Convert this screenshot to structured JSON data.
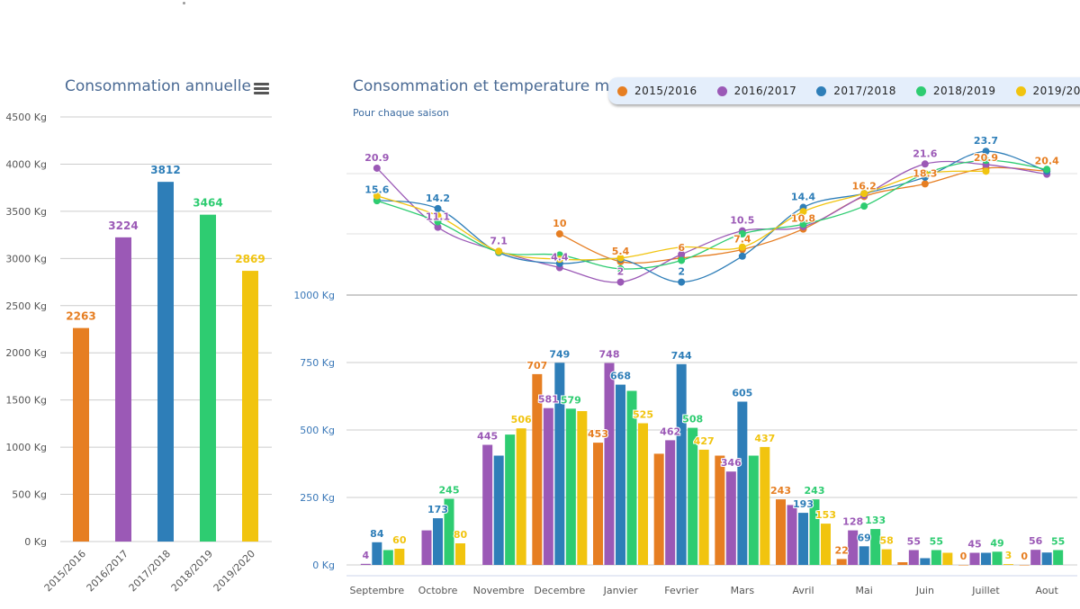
{
  "colors": {
    "2015/2016": "#e67e22",
    "2016/2017": "#9b59b6",
    "2017/2018": "#2e7eb8",
    "2018/2019": "#2ecc71",
    "2019/2020": "#f1c40f"
  },
  "chart_data": [
    {
      "type": "bar",
      "title": "Consommation annuelle",
      "categories": [
        "2015/2016",
        "2016/2017",
        "2017/2018",
        "2018/2019",
        "2019/2020"
      ],
      "values": [
        2263,
        3224,
        3812,
        3464,
        2869
      ],
      "ylim": [
        0,
        4500
      ],
      "yticks": [
        "0 Kg",
        "500 Kg",
        "1000 Kg",
        "1500 Kg",
        "2000 Kg",
        "2500 Kg",
        "3000 Kg",
        "3500 Kg",
        "4000 Kg",
        "4500 Kg"
      ],
      "grid": true
    },
    {
      "type": "bar+line",
      "title": "Consommation et temperature m",
      "subtitle": "Pour chaque saison",
      "legend": [
        "2015/2016",
        "2016/2017",
        "2017/2018",
        "2018/2019",
        "2019/2020"
      ],
      "legend_position": "top-right",
      "categories": [
        "Septembre",
        "Octobre",
        "Novembre",
        "Decembre",
        "Janvier",
        "Fevrier",
        "Mars",
        "Avril",
        "Mai",
        "Juin",
        "Juillet",
        "Aout"
      ],
      "bar_ylim": [
        0,
        750
      ],
      "bar_yticks": [
        "0 Kg",
        "250 Kg",
        "500 Kg",
        "750 Kg",
        "1000 Kg"
      ],
      "bar_series": [
        {
          "name": "2015/2016",
          "values": [
            null,
            null,
            null,
            707,
            453,
            412,
            405,
            243,
            22,
            10,
            0,
            0
          ],
          "labeled": [
            0,
            0,
            0,
            1,
            1,
            0,
            0,
            1,
            1,
            0,
            1,
            1
          ]
        },
        {
          "name": "2016/2017",
          "values": [
            4,
            128,
            445,
            581,
            748,
            462,
            346,
            222,
            128,
            55,
            45,
            56
          ],
          "labeled": [
            1,
            0,
            1,
            1,
            1,
            1,
            1,
            0,
            1,
            1,
            1,
            1
          ]
        },
        {
          "name": "2017/2018",
          "values": [
            84,
            173,
            405,
            749,
            668,
            744,
            605,
            193,
            69,
            25,
            45,
            46
          ],
          "labeled": [
            1,
            1,
            0,
            1,
            1,
            1,
            1,
            1,
            1,
            0,
            0,
            0
          ]
        },
        {
          "name": "2018/2019",
          "values": [
            55,
            245,
            483,
            579,
            645,
            508,
            405,
            243,
            133,
            55,
            49,
            55
          ],
          "labeled": [
            0,
            1,
            0,
            1,
            0,
            1,
            0,
            1,
            1,
            1,
            1,
            1
          ]
        },
        {
          "name": "2019/2020",
          "values": [
            60,
            80,
            506,
            570,
            525,
            427,
            437,
            153,
            58,
            45,
            3,
            null
          ],
          "labeled": [
            1,
            1,
            1,
            0,
            1,
            1,
            1,
            1,
            1,
            0,
            1,
            0
          ]
        }
      ],
      "temp_series": [
        {
          "name": "2015/2016",
          "values": [
            null,
            null,
            null,
            10,
            5.4,
            6,
            7.4,
            10.8,
            16.2,
            18.3,
            20.9,
            20.4
          ],
          "labeled": [
            0,
            0,
            0,
            1,
            1,
            1,
            1,
            1,
            1,
            1,
            1,
            1
          ]
        },
        {
          "name": "2016/2017",
          "values": [
            20.9,
            11.1,
            7.1,
            4.4,
            2,
            6.6,
            10.5,
            11.2,
            16.4,
            21.6,
            21.5,
            19.9
          ],
          "labeled": [
            1,
            1,
            1,
            1,
            1,
            0,
            1,
            0,
            0,
            1,
            0,
            0
          ]
        },
        {
          "name": "2017/2018",
          "values": [
            15.6,
            14.2,
            6.9,
            5.1,
            5.8,
            2,
            6.3,
            14.4,
            16.7,
            19.4,
            23.7,
            20.4
          ],
          "labeled": [
            1,
            1,
            0,
            0,
            0,
            1,
            0,
            1,
            0,
            0,
            1,
            0
          ]
        },
        {
          "name": "2018/2019",
          "values": [
            15.5,
            12,
            7,
            6.5,
            4.2,
            5.6,
            10,
            11.6,
            14.6,
            20,
            22.2,
            20.7
          ],
          "labeled": [
            0,
            0,
            0,
            0,
            0,
            0,
            0,
            0,
            0,
            0,
            0,
            0
          ]
        },
        {
          "name": "2019/2020",
          "values": [
            16.3,
            13,
            7.1,
            5.8,
            6,
            7.8,
            7.8,
            13.7,
            16.7,
            20,
            20.4,
            null
          ],
          "labeled": [
            0,
            0,
            0,
            0,
            0,
            0,
            0,
            0,
            0,
            0,
            0,
            0
          ]
        }
      ],
      "temp_ylim": [
        0,
        30
      ],
      "grid": true
    }
  ],
  "menu_icon": "hamburger-menu-icon"
}
